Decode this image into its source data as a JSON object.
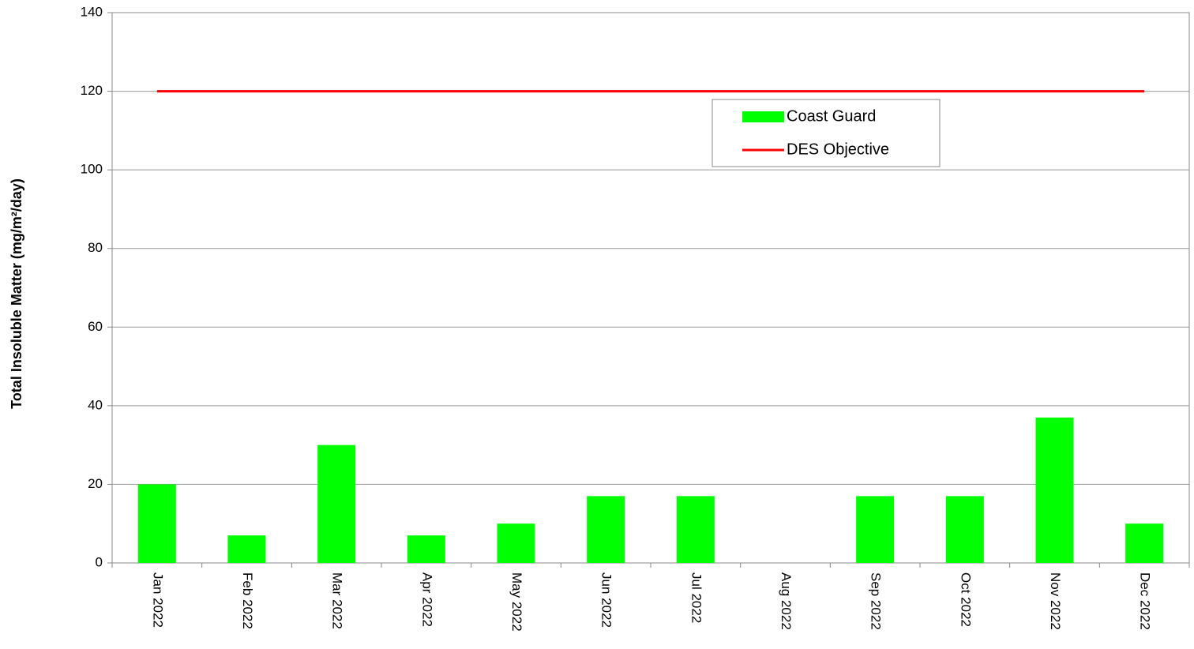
{
  "chart_data": {
    "type": "bar",
    "y_label": "Total Insoluble Matter (mg/m²/day)",
    "categories": [
      "Jan 2022",
      "Feb 2022",
      "Mar 2022",
      "Apr 2022",
      "May 2022",
      "Jun 2022",
      "Jul 2022",
      "Aug 2022",
      "Sep 2022",
      "Oct 2022",
      "Nov 2022",
      "Dec 2022"
    ],
    "series": [
      {
        "name": "Coast Guard",
        "type": "bar",
        "color": "#00ff00",
        "values": [
          20,
          7,
          30,
          7,
          10,
          17,
          17,
          null,
          17,
          17,
          37,
          10
        ]
      },
      {
        "name": "DES Objective",
        "type": "line",
        "color": "#ff0000",
        "values": [
          120,
          120,
          120,
          120,
          120,
          120,
          120,
          120,
          120,
          120,
          120,
          120
        ]
      }
    ],
    "ylim": [
      0,
      140
    ],
    "yticks": [
      0,
      20,
      40,
      60,
      80,
      100,
      120,
      140
    ],
    "grid": true,
    "legend": "upper right"
  }
}
